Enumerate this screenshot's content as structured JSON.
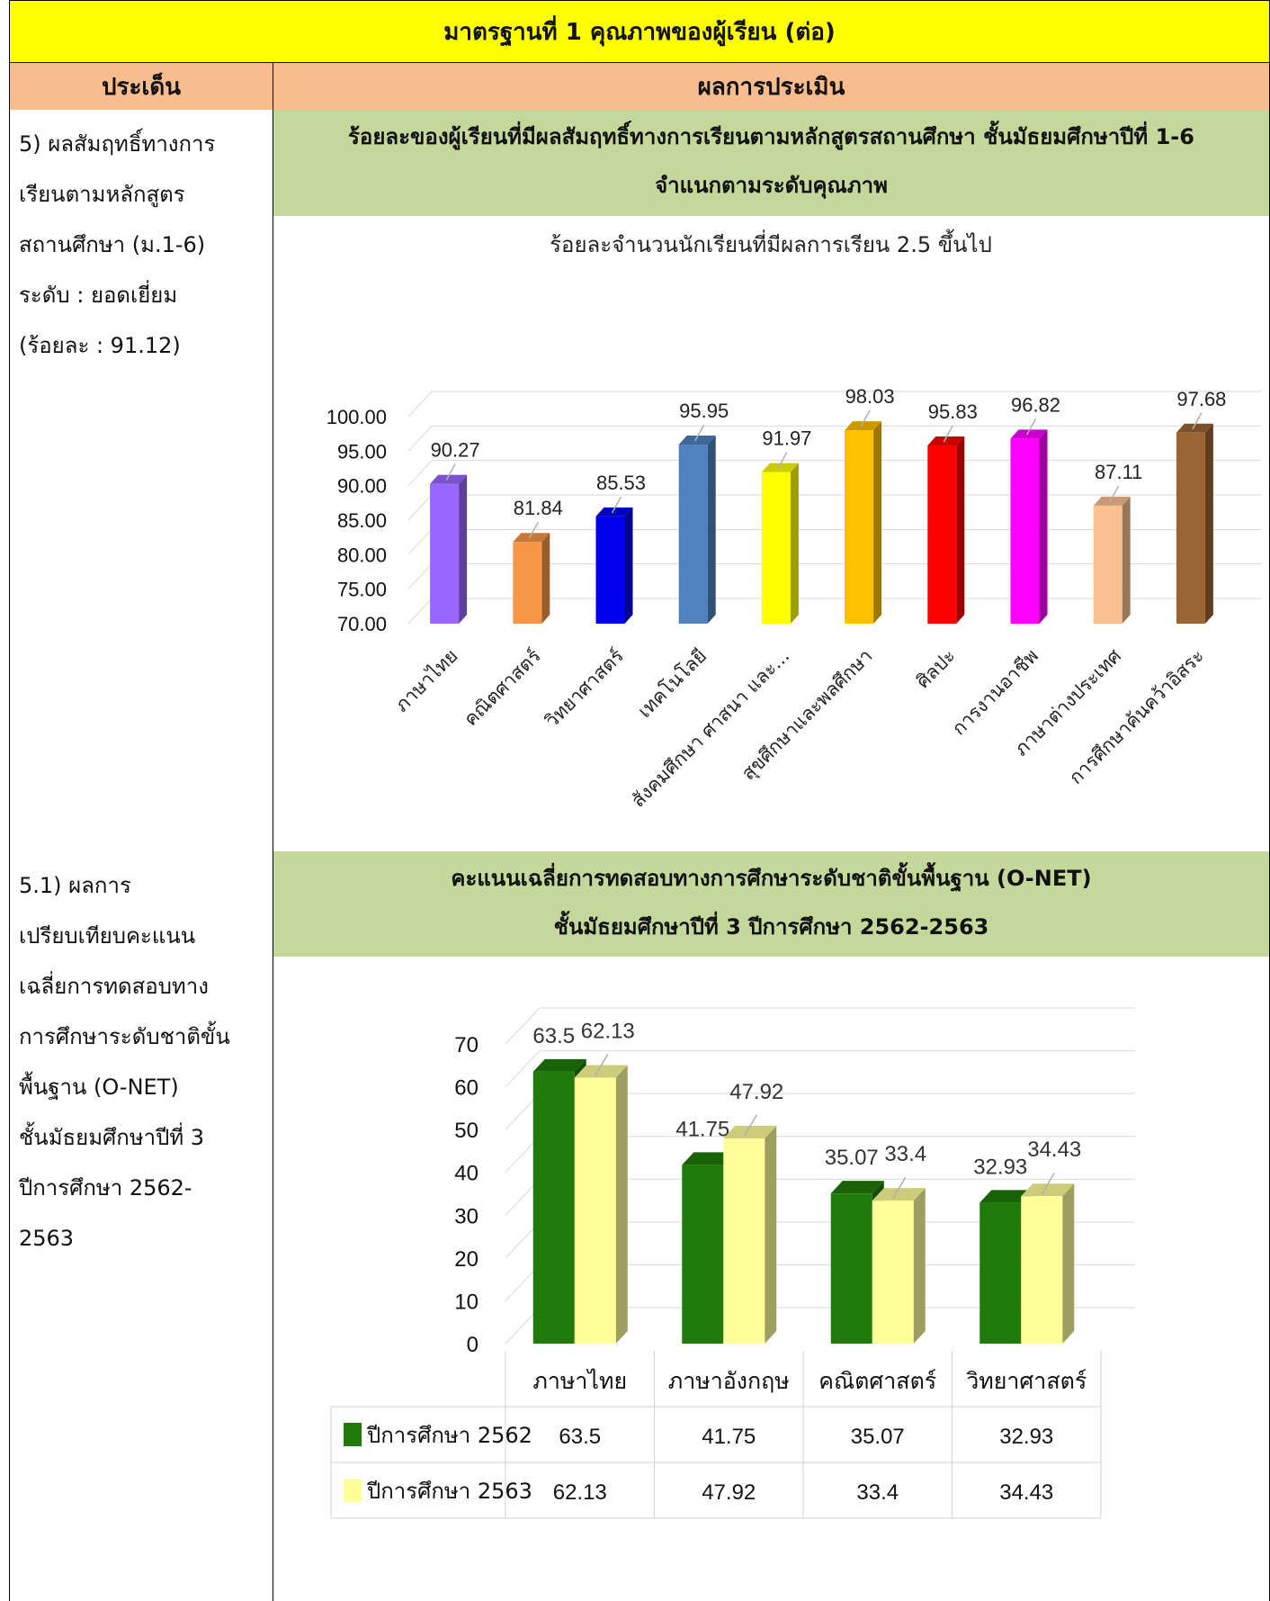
{
  "header": {
    "title": "มาตรฐานที่ 1 คุณภาพของผู้เรียน (ต่อ)",
    "col_issue": "ประเด็น",
    "col_result": "ผลการประเมิน"
  },
  "section1": {
    "issue_lines": [
      "5) ผลสัมฤทธิ์ทางการ",
      "เรียนตามหลักสูตร",
      "สถานศึกษา (ม.1-6)",
      "ระดับ : ยอดเยี่ยม",
      "(ร้อยละ : 91.12)"
    ],
    "band_lines": [
      "ร้อยละของผู้เรียนที่มีผลสัมฤทธิ์ทางการเรียนตามหลักสูตรสถานศึกษา ชั้นมัธยมศึกษาปีที่ 1-6",
      "จำแนกตามระดับคุณภาพ"
    ]
  },
  "section2": {
    "issue_lines": [
      "5.1) ผลการ",
      "เปรียบเทียบคะแนน",
      "เฉลี่ยการทดสอบทาง",
      "การศึกษาระดับชาติขั้น",
      "พื้นฐาน (O-NET)",
      "ชั้นมัธยมศึกษาปีที่ 3",
      "ปีการศึกษา 2562-",
      "2563"
    ],
    "band_lines": [
      "คะแนนเฉลี่ยการทดสอบทางการศึกษาระดับชาติขั้นพื้นฐาน (O-NET)",
      "ชั้นมัธยมศึกษาปีที่ 3 ปีการศึกษา 2562-2563"
    ]
  },
  "chart_data": [
    {
      "type": "bar",
      "title": "ร้อยละจำนวนนักเรียนที่มีผลการเรียน 2.5 ขึ้นไป",
      "categories": [
        "ภาษาไทย",
        "คณิตศาสตร์",
        "วิทยาศาสตร์",
        "เทคโนโลยี",
        "สังคมศึกษา ศาสนา และ...",
        "สุขศึกษาและพลศึกษา",
        "ศิลปะ",
        "การงานอาชีพ",
        "ภาษาต่างประเทศ",
        "การศึกษาค้นคว้าอิสระ"
      ],
      "values": [
        90.27,
        81.84,
        85.53,
        95.95,
        91.97,
        98.03,
        95.83,
        96.82,
        87.11,
        97.68
      ],
      "value_labels": [
        "90.27",
        "81.84",
        "85.53",
        "95.95",
        "91.97",
        "98.03",
        "95.83",
        "96.82",
        "87.11",
        "97.68"
      ],
      "colors": [
        "#9966ff",
        "#f79646",
        "#0000ee",
        "#4f81bd",
        "#ffff00",
        "#ffc000",
        "#ff0000",
        "#ff00ff",
        "#fac090",
        "#996633"
      ],
      "ylim": [
        70,
        100
      ],
      "yticks": [
        "70.00",
        "75.00",
        "80.00",
        "85.00",
        "90.00",
        "95.00",
        "100.00"
      ],
      "grid": true
    },
    {
      "type": "bar",
      "categories": [
        "ภาษาไทย",
        "ภาษาอังกฤษ",
        "คณิตศาสตร์",
        "วิทยาศาสตร์"
      ],
      "series": [
        {
          "name": "ปีการศึกษา 2562",
          "values": [
            63.5,
            41.75,
            35.07,
            32.93
          ],
          "labels": [
            "63.5",
            "41.75",
            "35.07",
            "32.93"
          ],
          "color": "#1f7a0a"
        },
        {
          "name": "ปีการศึกษา 2563",
          "values": [
            62.13,
            47.92,
            33.4,
            34.43
          ],
          "labels": [
            "62.13",
            "47.92",
            "33.4",
            "34.43"
          ],
          "color": "#ffff99"
        }
      ],
      "ylim": [
        0,
        70
      ],
      "yticks": [
        "0",
        "10",
        "20",
        "30",
        "40",
        "50",
        "60",
        "70"
      ],
      "legend": "bottom-table",
      "grid": true
    }
  ]
}
